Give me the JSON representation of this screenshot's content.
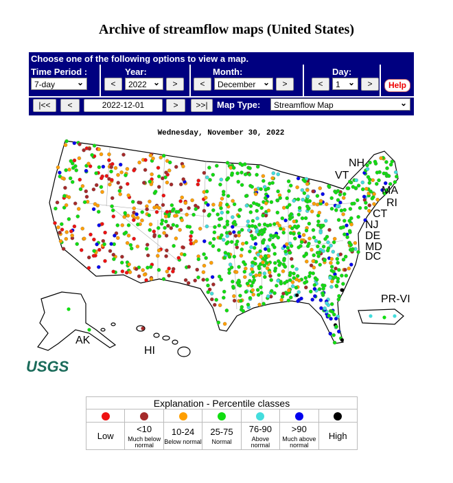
{
  "title": "Archive of streamflow maps (United States)",
  "controls": {
    "header": "Choose one of the following options to view a map.",
    "time_period": {
      "label": "Time Period :",
      "value": "7-day"
    },
    "year": {
      "label": "Year:",
      "prev": "<",
      "value": "2022",
      "next": ">"
    },
    "month": {
      "label": "Month:",
      "prev": "<",
      "value": "December",
      "next": ">"
    },
    "day": {
      "label": "Day:",
      "prev": "<",
      "value": "1",
      "next": ">"
    },
    "help": "Help",
    "nav": {
      "first": "|<<",
      "prev": "<",
      "date": "2022-12-01",
      "next": ">",
      "last": ">>|"
    },
    "map_type": {
      "label": "Map Type:",
      "value": "Streamflow Map"
    }
  },
  "map": {
    "date": "Wednesday, November 30, 2022",
    "labels": [
      "NH",
      "VT",
      "MA",
      "RI",
      "CT",
      "NJ",
      "DE",
      "MD",
      "DC",
      "PR-VI",
      "AK",
      "HI"
    ],
    "logo": "USGS"
  },
  "legend": {
    "title": "Explanation - Percentile classes",
    "classes": [
      {
        "color": "#ee1111",
        "label": "Low"
      },
      {
        "color": "#a52a2a",
        "label": "<10",
        "sublabel": "Much below normal"
      },
      {
        "color": "#ff9f00",
        "label": "10-24",
        "sublabel": "Below normal"
      },
      {
        "color": "#11dd11",
        "label": "25-75",
        "sublabel": "Normal"
      },
      {
        "color": "#44dddd",
        "label": "76-90",
        "sublabel": "Above normal"
      },
      {
        "color": "#0000ee",
        "label": ">90",
        "sublabel": "Much above normal"
      },
      {
        "color": "#000000",
        "label": "High"
      }
    ]
  }
}
